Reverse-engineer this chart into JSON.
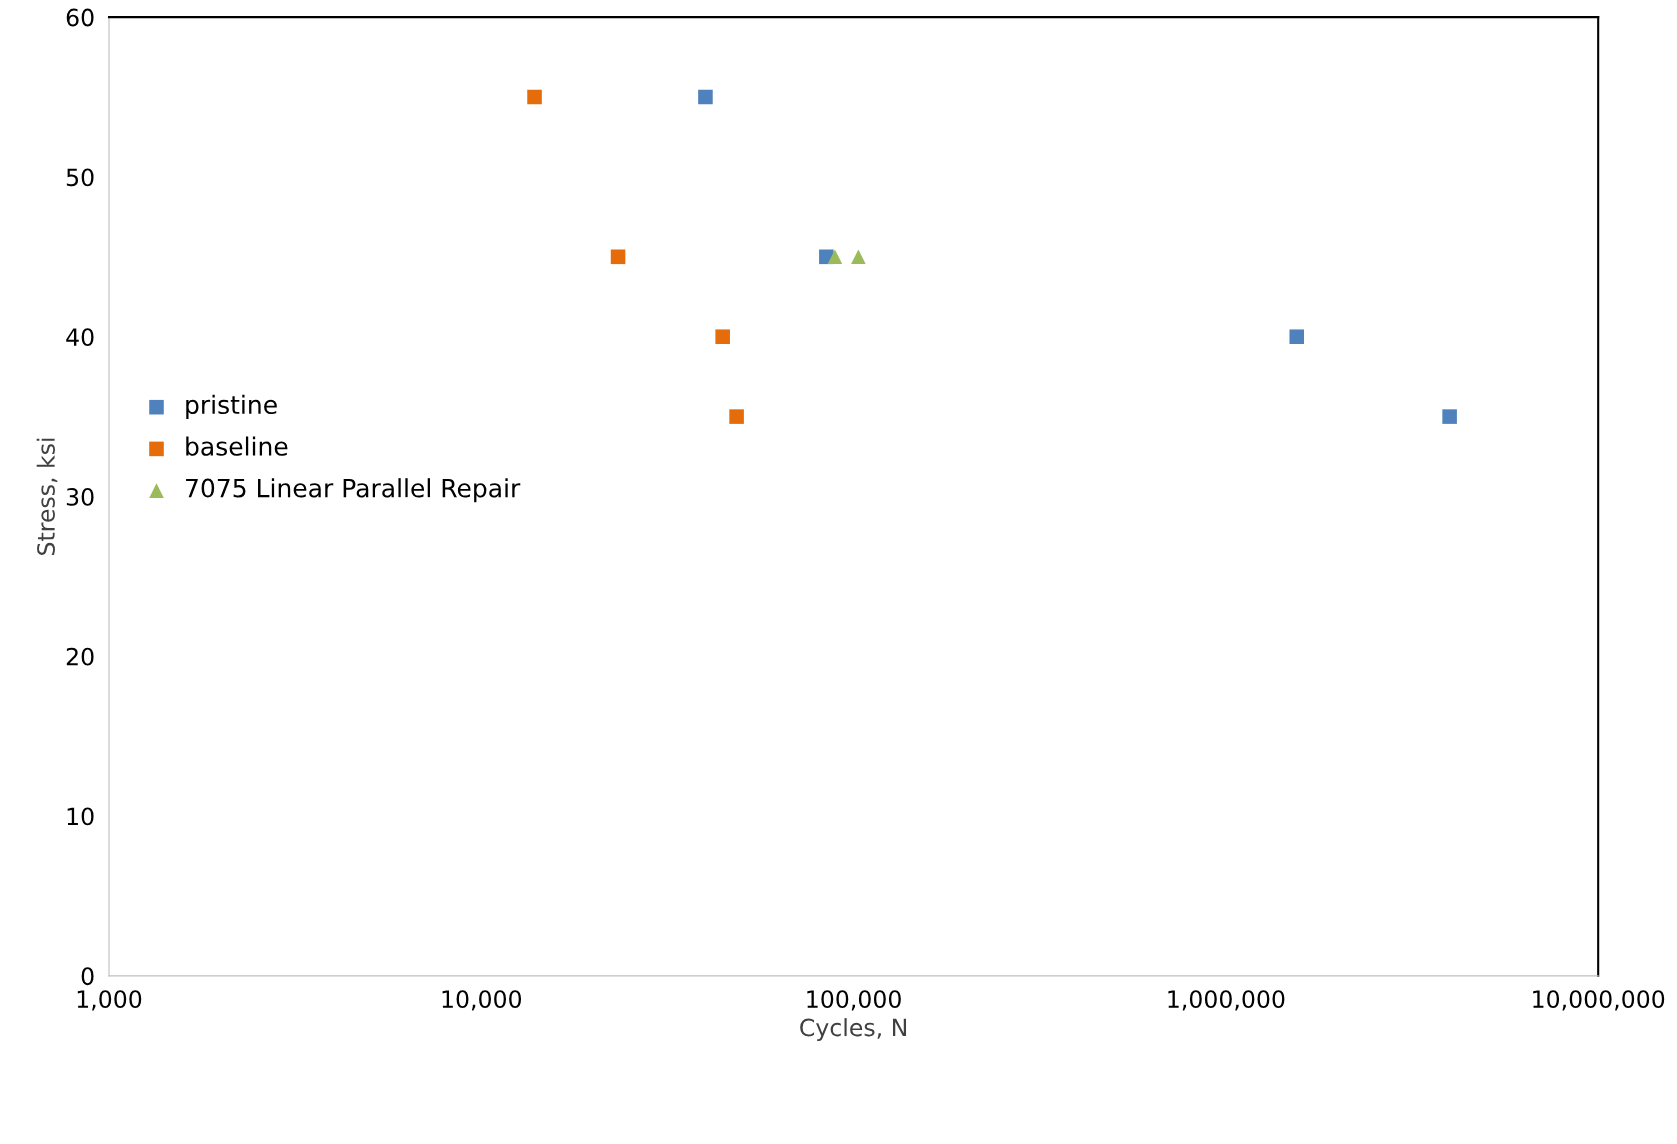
{
  "chart_data": {
    "type": "scatter",
    "xlabel": "Cycles, N",
    "ylabel": "Stress, ksi",
    "log": "x",
    "xlim": [
      1000,
      10000000
    ],
    "ylim": [
      0,
      60
    ],
    "xticks": [
      {
        "value": 1000,
        "label": "1,000"
      },
      {
        "value": 10000,
        "label": "10,000"
      },
      {
        "value": 100000,
        "label": "100,000"
      },
      {
        "value": 1000000,
        "label": "1,000,000"
      },
      {
        "value": 10000000,
        "label": "10,000,000"
      }
    ],
    "yticks": [
      0,
      10,
      20,
      30,
      40,
      50,
      60
    ],
    "grid": false,
    "legend": "left",
    "series": [
      {
        "name": "pristine",
        "color": "#4f81bd",
        "marker": "square",
        "x": [
          40000,
          84500,
          1550000,
          3990000
        ],
        "values": [
          55,
          45,
          40,
          35
        ]
      },
      {
        "name": "baseline",
        "color": "#e46c0a",
        "marker": "square",
        "x": [
          13900,
          23300,
          44500,
          48500
        ],
        "values": [
          55,
          45,
          40,
          35
        ]
      },
      {
        "name": "7075 Linear Parallel Repair",
        "color": "#9bbb59",
        "marker": "triangle",
        "x": [
          89100,
          103000
        ],
        "values": [
          45,
          45
        ]
      }
    ]
  }
}
